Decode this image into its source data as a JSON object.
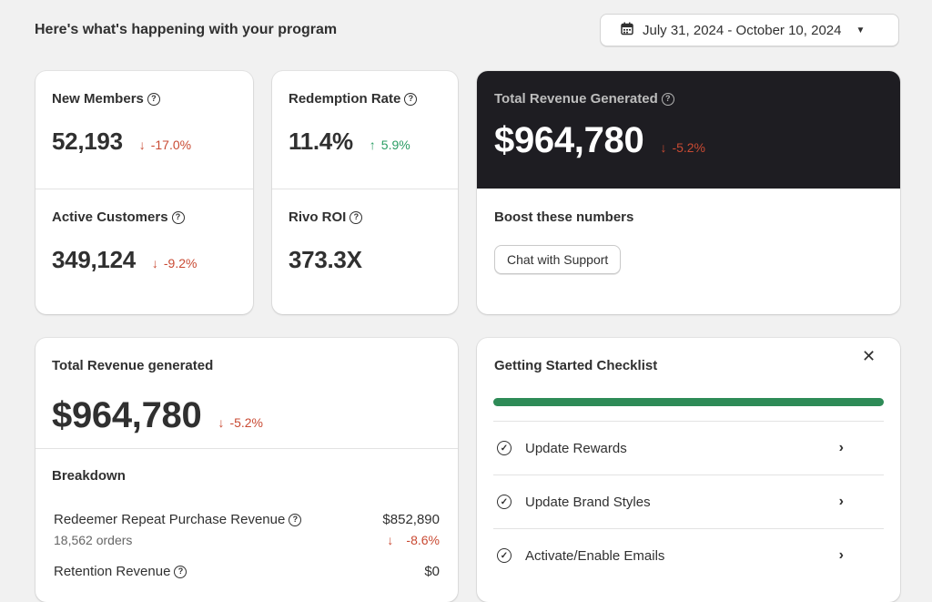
{
  "header": {
    "title": "Here's what's happening with your program",
    "date_range": "July 31, 2024 - October 10, 2024"
  },
  "metrics": {
    "new_members": {
      "label": "New Members",
      "value": "52,193",
      "delta": "-17.0%"
    },
    "redemption_rate": {
      "label": "Redemption Rate",
      "value": "11.4%",
      "delta": "5.9%"
    },
    "active_customers": {
      "label": "Active Customers",
      "value": "349,124",
      "delta": "-9.2%"
    },
    "rivo_roi": {
      "label": "Rivo ROI",
      "value": "373.3X"
    }
  },
  "revenue_card": {
    "label": "Total Revenue Generated",
    "value": "$964,780",
    "delta": "-5.2%",
    "boost_title": "Boost these numbers",
    "support_button": "Chat with Support"
  },
  "revenue_detail": {
    "title": "Total Revenue generated",
    "value": "$964,780",
    "delta": "-5.2%",
    "breakdown_title": "Breakdown",
    "rows": [
      {
        "label": "Redeemer Repeat Purchase Revenue",
        "value": "$852,890",
        "sub": "18,562 orders",
        "delta": "-8.6%"
      },
      {
        "label": "Retention Revenue",
        "value": "$0"
      }
    ]
  },
  "checklist": {
    "title": "Getting Started Checklist",
    "progress": 1.0,
    "items": [
      {
        "label": "Update Rewards"
      },
      {
        "label": "Update Brand Styles"
      },
      {
        "label": "Activate/Enable Emails"
      }
    ]
  },
  "colors": {
    "accent_green": "#2a9d63",
    "negative_red": "#c94a33",
    "progress_green": "#2e8b57",
    "dark_panel": "#1e1d22"
  }
}
